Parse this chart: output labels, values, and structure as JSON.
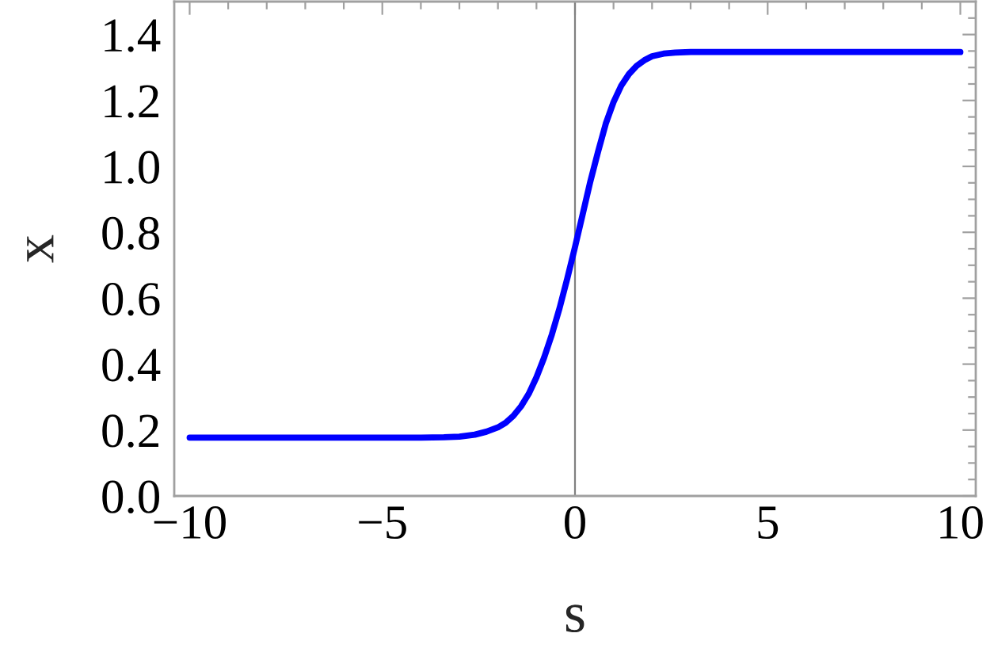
{
  "chart_data": {
    "type": "line",
    "xlabel": "s",
    "ylabel": "x",
    "x": [
      -10,
      -6,
      -4,
      -3.4,
      -3,
      -2.6,
      -2.3,
      -2,
      -1.8,
      -1.6,
      -1.4,
      -1.2,
      -1,
      -0.8,
      -0.6,
      -0.4,
      -0.2,
      0,
      0.2,
      0.4,
      0.6,
      0.8,
      1,
      1.2,
      1.4,
      1.6,
      1.8,
      2,
      2.3,
      2.6,
      3,
      3.5,
      4,
      6,
      10
    ],
    "series": [
      {
        "color": "#0000ff",
        "values": [
          0.177,
          0.177,
          0.177,
          0.178,
          0.18,
          0.186,
          0.195,
          0.208,
          0.222,
          0.243,
          0.272,
          0.31,
          0.36,
          0.42,
          0.49,
          0.57,
          0.66,
          0.755,
          0.855,
          0.955,
          1.045,
          1.13,
          1.195,
          1.245,
          1.28,
          1.305,
          1.322,
          1.334,
          1.342,
          1.345,
          1.347,
          1.347,
          1.347,
          1.347,
          1.347
        ]
      }
    ],
    "xlim": [
      -10.4,
      10.4
    ],
    "ylim": [
      0,
      1.5
    ],
    "xticks": [
      {
        "value": -10,
        "label": "−10"
      },
      {
        "value": -9,
        "label": null
      },
      {
        "value": -8,
        "label": null
      },
      {
        "value": -7,
        "label": null
      },
      {
        "value": -6,
        "label": null
      },
      {
        "value": -5,
        "label": "−5"
      },
      {
        "value": -4,
        "label": null
      },
      {
        "value": -3,
        "label": null
      },
      {
        "value": -2,
        "label": null
      },
      {
        "value": -1,
        "label": null
      },
      0,
      {
        "value": 1,
        "label": null
      },
      {
        "value": 2,
        "label": null
      },
      {
        "value": 3,
        "label": null
      },
      {
        "value": 4,
        "label": null
      },
      5,
      {
        "value": 6,
        "label": null
      },
      {
        "value": 7,
        "label": null
      },
      {
        "value": 8,
        "label": null
      },
      {
        "value": 9,
        "label": null
      },
      10
    ],
    "yticks": [
      {
        "value": 0,
        "label": "0.0"
      },
      {
        "value": 0.05,
        "label": null
      },
      {
        "value": 0.1,
        "label": null
      },
      {
        "value": 0.15,
        "label": null
      },
      0.2,
      {
        "value": 0.25,
        "label": null
      },
      {
        "value": 0.3,
        "label": null
      },
      {
        "value": 0.35,
        "label": null
      },
      0.4,
      {
        "value": 0.45,
        "label": null
      },
      {
        "value": 0.5,
        "label": null
      },
      {
        "value": 0.55,
        "label": null
      },
      0.6,
      {
        "value": 0.65,
        "label": null
      },
      {
        "value": 0.7,
        "label": null
      },
      {
        "value": 0.75,
        "label": null
      },
      0.8,
      {
        "value": 0.85,
        "label": null
      },
      {
        "value": 0.9,
        "label": null
      },
      {
        "value": 0.95,
        "label": null
      },
      {
        "value": 1,
        "label": "1.0"
      },
      {
        "value": 1.05,
        "label": null
      },
      {
        "value": 1.1,
        "label": null
      },
      {
        "value": 1.15,
        "label": null
      },
      1.2,
      {
        "value": 1.25,
        "label": null
      },
      {
        "value": 1.3,
        "label": null
      },
      {
        "value": 1.35,
        "label": null
      },
      1.4,
      {
        "value": 1.45,
        "label": null
      }
    ],
    "ref_lines": [
      {
        "axis": "x",
        "value": 0,
        "color": "#808080"
      }
    ]
  }
}
